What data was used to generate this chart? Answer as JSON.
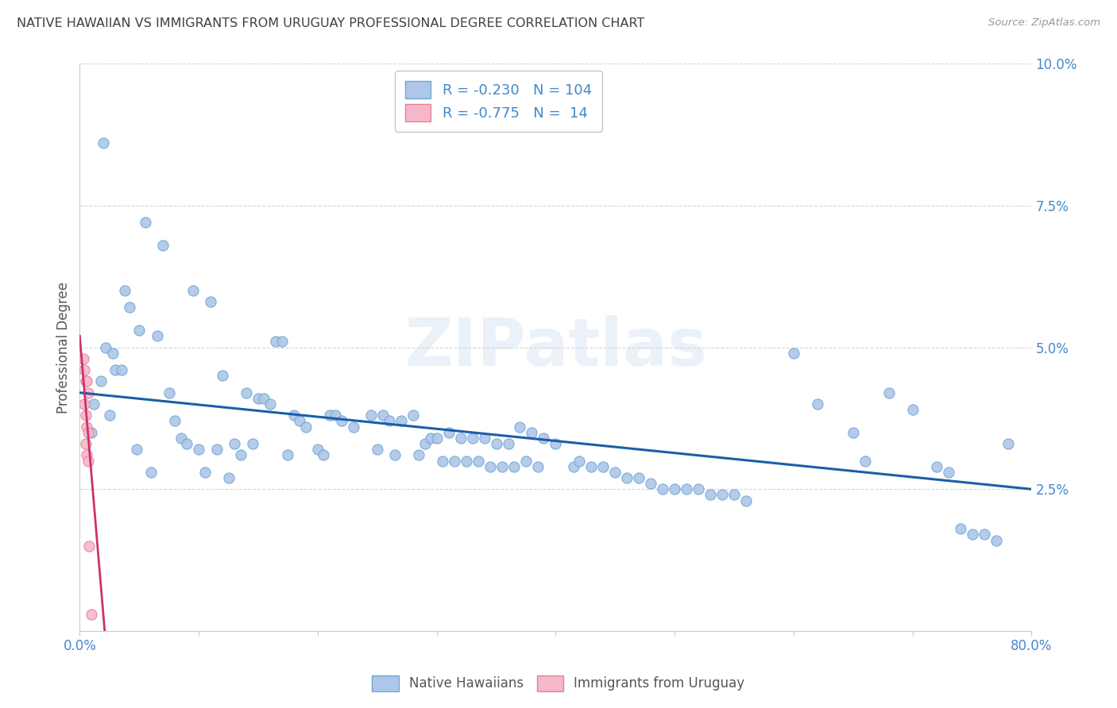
{
  "title": "NATIVE HAWAIIAN VS IMMIGRANTS FROM URUGUAY PROFESSIONAL DEGREE CORRELATION CHART",
  "source": "Source: ZipAtlas.com",
  "ylabel": "Professional Degree",
  "xlim": [
    0.0,
    0.8
  ],
  "ylim": [
    0.0,
    0.1
  ],
  "blue_R": -0.23,
  "blue_N": 104,
  "pink_R": -0.775,
  "pink_N": 14,
  "blue_color": "#aec6e8",
  "blue_edge": "#6fa8d4",
  "pink_color": "#f4b8c8",
  "pink_edge": "#e87fa0",
  "blue_line_color": "#1a5fa8",
  "pink_line_color": "#cc3366",
  "legend_label_blue": "Native Hawaiians",
  "legend_label_pink": "Immigrants from Uruguay",
  "watermark": "ZIPatlas",
  "background_color": "#ffffff",
  "grid_color": "#bbbbbb",
  "title_color": "#404040",
  "axis_label_color": "#4488cc",
  "blue_line_x0": 0.0,
  "blue_line_y0": 0.042,
  "blue_line_x1": 0.8,
  "blue_line_y1": 0.025,
  "pink_line_x0": 0.0,
  "pink_line_y0": 0.052,
  "pink_line_x1": 0.021,
  "pink_line_y1": 0.0,
  "blue_points": [
    [
      0.02,
      0.086
    ],
    [
      0.055,
      0.072
    ],
    [
      0.07,
      0.068
    ],
    [
      0.038,
      0.06
    ],
    [
      0.042,
      0.057
    ],
    [
      0.095,
      0.06
    ],
    [
      0.11,
      0.058
    ],
    [
      0.05,
      0.053
    ],
    [
      0.065,
      0.052
    ],
    [
      0.022,
      0.05
    ],
    [
      0.028,
      0.049
    ],
    [
      0.03,
      0.046
    ],
    [
      0.035,
      0.046
    ],
    [
      0.165,
      0.051
    ],
    [
      0.17,
      0.051
    ],
    [
      0.018,
      0.044
    ],
    [
      0.12,
      0.045
    ],
    [
      0.075,
      0.042
    ],
    [
      0.14,
      0.042
    ],
    [
      0.15,
      0.041
    ],
    [
      0.155,
      0.041
    ],
    [
      0.012,
      0.04
    ],
    [
      0.16,
      0.04
    ],
    [
      0.025,
      0.038
    ],
    [
      0.18,
      0.038
    ],
    [
      0.08,
      0.037
    ],
    [
      0.185,
      0.037
    ],
    [
      0.19,
      0.036
    ],
    [
      0.21,
      0.038
    ],
    [
      0.215,
      0.038
    ],
    [
      0.22,
      0.037
    ],
    [
      0.23,
      0.036
    ],
    [
      0.245,
      0.038
    ],
    [
      0.255,
      0.038
    ],
    [
      0.26,
      0.037
    ],
    [
      0.27,
      0.037
    ],
    [
      0.28,
      0.038
    ],
    [
      0.01,
      0.035
    ],
    [
      0.085,
      0.034
    ],
    [
      0.09,
      0.033
    ],
    [
      0.13,
      0.033
    ],
    [
      0.145,
      0.033
    ],
    [
      0.29,
      0.033
    ],
    [
      0.295,
      0.034
    ],
    [
      0.3,
      0.034
    ],
    [
      0.31,
      0.035
    ],
    [
      0.32,
      0.034
    ],
    [
      0.33,
      0.034
    ],
    [
      0.34,
      0.034
    ],
    [
      0.35,
      0.033
    ],
    [
      0.36,
      0.033
    ],
    [
      0.37,
      0.036
    ],
    [
      0.38,
      0.035
    ],
    [
      0.39,
      0.034
    ],
    [
      0.4,
      0.033
    ],
    [
      0.048,
      0.032
    ],
    [
      0.1,
      0.032
    ],
    [
      0.115,
      0.032
    ],
    [
      0.135,
      0.031
    ],
    [
      0.175,
      0.031
    ],
    [
      0.2,
      0.032
    ],
    [
      0.205,
      0.031
    ],
    [
      0.25,
      0.032
    ],
    [
      0.265,
      0.031
    ],
    [
      0.285,
      0.031
    ],
    [
      0.305,
      0.03
    ],
    [
      0.315,
      0.03
    ],
    [
      0.325,
      0.03
    ],
    [
      0.335,
      0.03
    ],
    [
      0.345,
      0.029
    ],
    [
      0.355,
      0.029
    ],
    [
      0.365,
      0.029
    ],
    [
      0.375,
      0.03
    ],
    [
      0.385,
      0.029
    ],
    [
      0.415,
      0.029
    ],
    [
      0.42,
      0.03
    ],
    [
      0.43,
      0.029
    ],
    [
      0.44,
      0.029
    ],
    [
      0.45,
      0.028
    ],
    [
      0.06,
      0.028
    ],
    [
      0.105,
      0.028
    ],
    [
      0.125,
      0.027
    ],
    [
      0.46,
      0.027
    ],
    [
      0.47,
      0.027
    ],
    [
      0.48,
      0.026
    ],
    [
      0.49,
      0.025
    ],
    [
      0.5,
      0.025
    ],
    [
      0.51,
      0.025
    ],
    [
      0.52,
      0.025
    ],
    [
      0.53,
      0.024
    ],
    [
      0.54,
      0.024
    ],
    [
      0.55,
      0.024
    ],
    [
      0.56,
      0.023
    ],
    [
      0.6,
      0.049
    ],
    [
      0.62,
      0.04
    ],
    [
      0.65,
      0.035
    ],
    [
      0.66,
      0.03
    ],
    [
      0.68,
      0.042
    ],
    [
      0.7,
      0.039
    ],
    [
      0.72,
      0.029
    ],
    [
      0.73,
      0.028
    ],
    [
      0.74,
      0.018
    ],
    [
      0.75,
      0.017
    ],
    [
      0.76,
      0.017
    ],
    [
      0.77,
      0.016
    ],
    [
      0.78,
      0.033
    ]
  ],
  "pink_points": [
    [
      0.003,
      0.048
    ],
    [
      0.004,
      0.046
    ],
    [
      0.005,
      0.044
    ],
    [
      0.006,
      0.044
    ],
    [
      0.007,
      0.042
    ],
    [
      0.004,
      0.04
    ],
    [
      0.005,
      0.038
    ],
    [
      0.006,
      0.036
    ],
    [
      0.007,
      0.035
    ],
    [
      0.005,
      0.033
    ],
    [
      0.006,
      0.031
    ],
    [
      0.007,
      0.03
    ],
    [
      0.008,
      0.015
    ],
    [
      0.01,
      0.003
    ]
  ]
}
